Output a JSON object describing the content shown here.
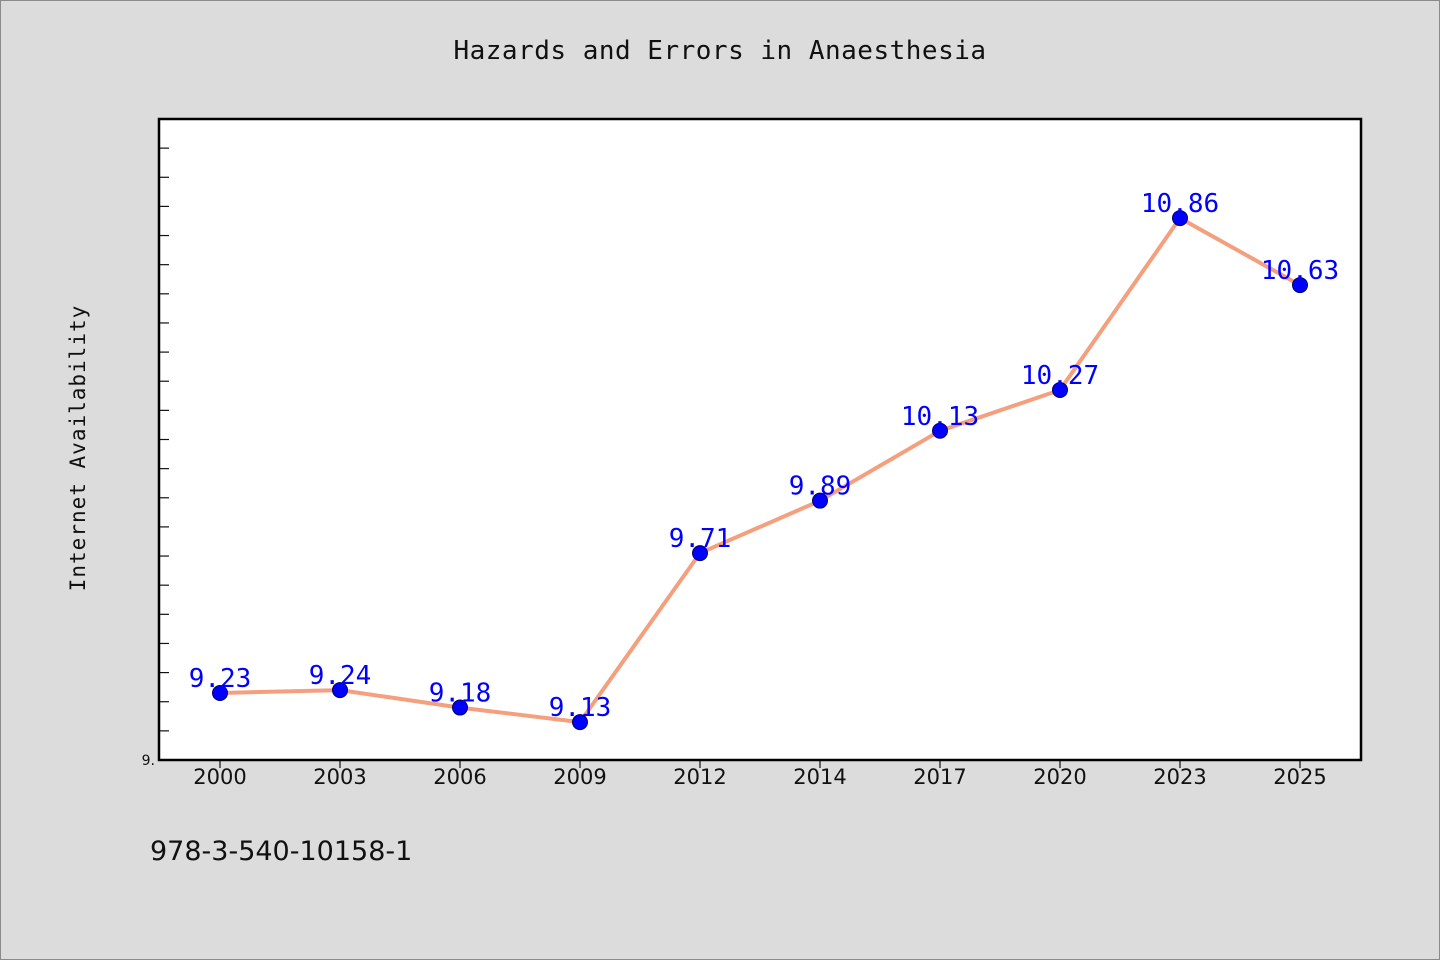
{
  "chart_data": {
    "type": "line",
    "title": "Hazards and Errors in Anaesthesia",
    "xlabel": "",
    "ylabel": "Internet Availability",
    "categories": [
      "2000",
      "2003",
      "2006",
      "2009",
      "2012",
      "2014",
      "2017",
      "2020",
      "2023",
      "2025"
    ],
    "series": [
      {
        "values": [
          9.23,
          9.24,
          9.18,
          9.13,
          9.71,
          9.89,
          10.13,
          10.27,
          10.86,
          10.63
        ]
      }
    ],
    "data_labels": [
      "9.23",
      "9.24",
      "9.18",
      "9.13",
      "9.71",
      "9.89",
      "10.13",
      "10.27",
      "10.86",
      "10.63"
    ],
    "y_axis_min_label": "9.",
    "ylim": [
      9.0,
      11.2
    ],
    "grid": false,
    "colors": {
      "line": "#f4a07e",
      "marker": "#0000ff",
      "data_label": "#0000ff",
      "plot_background": "#ffffff",
      "figure_background": "#dcdcdc"
    }
  },
  "footer_text": "978-3-540-10158-1"
}
